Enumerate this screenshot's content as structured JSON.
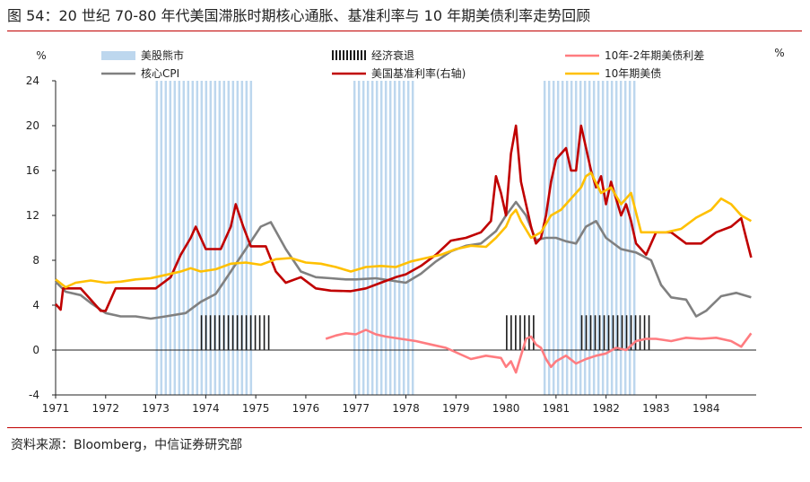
{
  "header": {
    "title": "图 54：20 世纪 70-80 年代美国滞胀时期核心通胀、基准利率与 10 年期美债利率走势回顾"
  },
  "footer": {
    "source": "资料来源：Bloomberg，中信证券研究部"
  },
  "chart_data": {
    "type": "line",
    "title": "",
    "left_unit": "%",
    "right_unit": "%",
    "ylim": [
      -4,
      24
    ],
    "y_ticks": [
      -4,
      0,
      4,
      8,
      12,
      16,
      20,
      24
    ],
    "xlim": [
      1971,
      1985
    ],
    "x_ticks": [
      "1971",
      "1972",
      "1973",
      "1974",
      "1975",
      "1976",
      "1977",
      "1978",
      "1979",
      "1980",
      "1981",
      "1982",
      "1983",
      "1984"
    ],
    "legend": [
      {
        "label": "美股熊市",
        "kind": "band",
        "color": "#bdd7ee"
      },
      {
        "label": "经济衰退",
        "kind": "band",
        "color": "#1a1a1a"
      },
      {
        "label": "10年-2年期美债利差",
        "kind": "line",
        "color": "#ff7c80"
      },
      {
        "label": "核心CPI",
        "kind": "line",
        "color": "#808080"
      },
      {
        "label": "美国基准利率(右轴)",
        "kind": "line",
        "color": "#c00000"
      },
      {
        "label": "10年期美债",
        "kind": "line",
        "color": "#ffc000"
      }
    ],
    "bear_markets": [
      [
        1973.0,
        1974.95
      ],
      [
        1976.95,
        1978.2
      ],
      [
        1980.75,
        1982.6
      ]
    ],
    "recessions": [
      [
        1973.9,
        1975.25
      ],
      [
        1980.0,
        1980.55
      ],
      [
        1981.5,
        1982.9
      ]
    ],
    "series": [
      {
        "name": "核心CPI",
        "color": "#808080",
        "x": [
          1971.0,
          1971.2,
          1971.5,
          1971.7,
          1972.0,
          1972.3,
          1972.6,
          1972.9,
          1973.2,
          1973.6,
          1973.9,
          1974.2,
          1974.5,
          1974.8,
          1974.95,
          1975.1,
          1975.3,
          1975.6,
          1975.9,
          1976.2,
          1976.5,
          1976.8,
          1977.0,
          1977.4,
          1977.7,
          1978.0,
          1978.3,
          1978.6,
          1978.9,
          1979.2,
          1979.5,
          1979.8,
          1980.0,
          1980.2,
          1980.4,
          1980.6,
          1980.8,
          1981.0,
          1981.2,
          1981.4,
          1981.6,
          1981.8,
          1982.0,
          1982.3,
          1982.6,
          1982.9,
          1983.1,
          1983.3,
          1983.6,
          1983.8,
          1984.0,
          1984.3,
          1984.6,
          1984.9
        ],
        "values": [
          6.1,
          5.2,
          4.9,
          4.2,
          3.3,
          3.0,
          3.0,
          2.8,
          3.0,
          3.3,
          4.3,
          5.0,
          7.0,
          9.0,
          10.0,
          11.0,
          11.4,
          9.0,
          7.0,
          6.5,
          6.4,
          6.3,
          6.3,
          6.4,
          6.2,
          6.0,
          6.8,
          7.9,
          8.8,
          9.3,
          9.5,
          10.6,
          12.0,
          13.2,
          12.0,
          9.8,
          10.0,
          10.0,
          9.7,
          9.5,
          11.0,
          11.5,
          10.0,
          9.0,
          8.7,
          8.0,
          5.8,
          4.7,
          4.5,
          3.0,
          3.5,
          4.8,
          5.1,
          4.7
        ]
      },
      {
        "name": "美国基准利率",
        "color": "#c00000",
        "x": [
          1971.0,
          1971.1,
          1971.15,
          1971.5,
          1971.7,
          1971.9,
          1972.0,
          1972.2,
          1972.5,
          1972.8,
          1973.0,
          1973.3,
          1973.5,
          1973.7,
          1973.8,
          1974.0,
          1974.3,
          1974.5,
          1974.6,
          1974.75,
          1974.9,
          1975.2,
          1975.4,
          1975.6,
          1975.9,
          1976.2,
          1976.5,
          1976.9,
          1977.2,
          1977.5,
          1977.8,
          1978.0,
          1978.3,
          1978.6,
          1978.9,
          1979.2,
          1979.5,
          1979.7,
          1979.8,
          1979.9,
          1980.0,
          1980.1,
          1980.2,
          1980.3,
          1980.4,
          1980.5,
          1980.6,
          1980.7,
          1980.8,
          1980.9,
          1981.0,
          1981.2,
          1981.3,
          1981.4,
          1981.5,
          1981.7,
          1981.8,
          1981.9,
          1982.0,
          1982.1,
          1982.3,
          1982.4,
          1982.5,
          1982.6,
          1982.8,
          1983.0,
          1983.3,
          1983.6,
          1983.9,
          1984.2,
          1984.5,
          1984.7,
          1984.8,
          1984.9
        ],
        "values": [
          4.1,
          3.6,
          5.5,
          5.5,
          4.5,
          3.5,
          3.5,
          5.5,
          5.5,
          5.5,
          5.5,
          6.5,
          8.5,
          10.0,
          11.0,
          9.0,
          9.0,
          11.0,
          13.0,
          11.0,
          9.25,
          9.25,
          7.0,
          6.0,
          6.5,
          5.5,
          5.3,
          5.25,
          5.5,
          6.0,
          6.5,
          6.75,
          7.5,
          8.5,
          9.75,
          10.0,
          10.5,
          11.5,
          15.5,
          14.0,
          12.0,
          17.5,
          20.0,
          15.0,
          13.0,
          11.0,
          9.5,
          10.0,
          12.0,
          15.0,
          17.0,
          18.0,
          16.0,
          16.0,
          20.0,
          16.0,
          14.5,
          15.5,
          13.0,
          15.0,
          12.0,
          13.0,
          11.5,
          9.5,
          8.5,
          10.5,
          10.5,
          9.5,
          9.5,
          10.5,
          11.0,
          11.75,
          10.0,
          8.25
        ]
      },
      {
        "name": "10年期美债",
        "color": "#ffc000",
        "x": [
          1971.0,
          1971.2,
          1971.4,
          1971.7,
          1972.0,
          1972.3,
          1972.6,
          1972.9,
          1973.2,
          1973.5,
          1973.7,
          1973.9,
          1974.2,
          1974.5,
          1974.8,
          1975.1,
          1975.4,
          1975.7,
          1976.0,
          1976.3,
          1976.6,
          1976.9,
          1977.2,
          1977.5,
          1977.8,
          1978.1,
          1978.4,
          1978.7,
          1979.0,
          1979.3,
          1979.6,
          1979.8,
          1980.0,
          1980.1,
          1980.2,
          1980.3,
          1980.5,
          1980.7,
          1980.9,
          1981.1,
          1981.3,
          1981.5,
          1981.6,
          1981.7,
          1981.9,
          1982.1,
          1982.3,
          1982.5,
          1982.7,
          1982.9,
          1983.2,
          1983.5,
          1983.8,
          1984.1,
          1984.3,
          1984.5,
          1984.7,
          1984.9
        ],
        "values": [
          6.3,
          5.6,
          6.0,
          6.2,
          6.0,
          6.1,
          6.3,
          6.4,
          6.7,
          7.0,
          7.3,
          7.0,
          7.2,
          7.7,
          7.8,
          7.6,
          8.1,
          8.2,
          7.8,
          7.7,
          7.4,
          7.0,
          7.4,
          7.5,
          7.4,
          7.9,
          8.2,
          8.5,
          9.0,
          9.3,
          9.2,
          10.0,
          11.0,
          12.0,
          12.5,
          11.5,
          10.0,
          10.5,
          12.0,
          12.5,
          13.5,
          14.5,
          15.5,
          15.8,
          14.0,
          14.5,
          13.0,
          14.0,
          10.5,
          10.5,
          10.5,
          10.8,
          11.8,
          12.5,
          13.5,
          13.0,
          12.0,
          11.5
        ]
      },
      {
        "name": "10年-2年期美债利差",
        "color": "#ff7c80",
        "x": [
          1976.4,
          1976.6,
          1976.8,
          1977.0,
          1977.2,
          1977.4,
          1977.6,
          1977.9,
          1978.2,
          1978.5,
          1978.8,
          1979.0,
          1979.3,
          1979.6,
          1979.9,
          1980.0,
          1980.1,
          1980.2,
          1980.3,
          1980.4,
          1980.5,
          1980.6,
          1980.7,
          1980.8,
          1980.9,
          1981.0,
          1981.2,
          1981.4,
          1981.6,
          1981.8,
          1982.0,
          1982.2,
          1982.4,
          1982.6,
          1982.8,
          1983.0,
          1983.3,
          1983.6,
          1983.9,
          1984.2,
          1984.5,
          1984.7,
          1984.9
        ],
        "values": [
          1.0,
          1.3,
          1.5,
          1.4,
          1.8,
          1.4,
          1.2,
          1.0,
          0.8,
          0.5,
          0.2,
          -0.2,
          -0.8,
          -0.5,
          -0.7,
          -1.5,
          -1.0,
          -2.0,
          -0.5,
          1.0,
          1.2,
          0.5,
          0.2,
          -0.8,
          -1.5,
          -1.0,
          -0.5,
          -1.2,
          -0.8,
          -0.5,
          -0.3,
          0.2,
          0.0,
          0.8,
          1.0,
          1.0,
          0.8,
          1.1,
          1.0,
          1.1,
          0.8,
          0.3,
          1.5
        ]
      }
    ]
  }
}
